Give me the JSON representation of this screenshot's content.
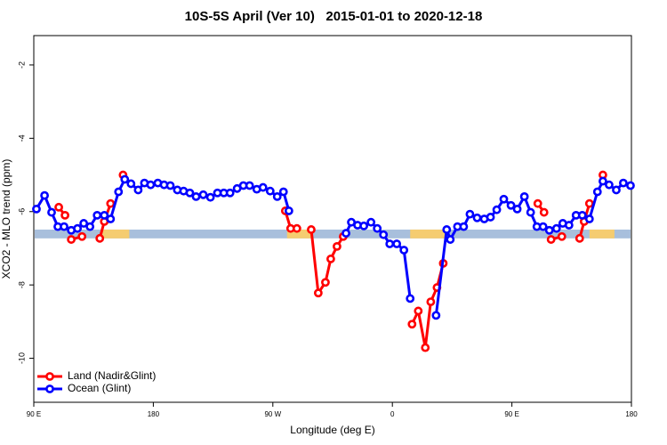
{
  "chart_data": {
    "type": "line",
    "title": "10S-5S April (Ver 10)   2015-01-01 to 2020-12-18",
    "xlabel": "Longitude (deg E)",
    "ylabel": "XCO2 - MLO trend (ppm)",
    "xlim": [
      90,
      540
    ],
    "xticks": [
      {
        "value": 90,
        "label": "90 E"
      },
      {
        "value": 180,
        "label": "180"
      },
      {
        "value": 270,
        "label": "90 W"
      },
      {
        "value": 360,
        "label": "0"
      },
      {
        "value": 450,
        "label": "90 E"
      },
      {
        "value": 540,
        "label": "180"
      }
    ],
    "ylim": [
      -11.2,
      -1.2
    ],
    "yticks": [
      -2,
      -4,
      -6,
      -8,
      -10
    ],
    "legend": "bottom-left",
    "band": {
      "y": [
        -6.73,
        -6.49
      ],
      "color": "#a8bfdc",
      "land_color": "#f5cc70",
      "land_x": [
        [
          141.7,
          161.9
        ],
        [
          280.7,
          299.5
        ],
        [
          373.4,
          400.2
        ],
        [
          508.4,
          527.2
        ]
      ]
    },
    "series": [
      {
        "name": "Land (Nadir&Glint)",
        "color": "#ff0000",
        "x": [
          108.8,
          113.5,
          null,
          118.2,
          126.3,
          null,
          139.7,
          143.1,
          147.8,
          null,
          157.2,
          null,
          279.4,
          283.4,
          288.1,
          null,
          298.9,
          304.2,
          309.6,
          313.6,
          318.3,
          323.0,
          null,
          374.8,
          379.5,
          384.8,
          388.9,
          393.6,
          398.3,
          null,
          469.5,
          474.2,
          null,
          479.5,
          487.6,
          null,
          501.0,
          504.4,
          508.4,
          null,
          518.5
        ],
        "values": [
          -5.88,
          -6.1,
          null,
          -6.76,
          -6.68,
          null,
          -6.73,
          -6.27,
          -5.78,
          null,
          -5.0,
          null,
          -5.98,
          -6.46,
          -6.46,
          null,
          -6.49,
          -8.22,
          -7.93,
          -7.29,
          -6.95,
          -6.68,
          null,
          -9.07,
          -8.71,
          -9.71,
          -8.46,
          -8.07,
          -7.41,
          null,
          -5.78,
          -6.02,
          null,
          -6.76,
          -6.68,
          null,
          -6.73,
          -6.27,
          -5.78,
          null,
          -5.0
        ]
      },
      {
        "name": "Ocean (Glint)",
        "color": "#0000ff",
        "x": [
          92.0,
          98.1,
          103.4,
          108.1,
          112.8,
          118.2,
          122.9,
          127.6,
          132.3,
          137.7,
          143.1,
          147.8,
          153.8,
          158.5,
          163.2,
          168.6,
          173.3,
          178.0,
          183.4,
          188.1,
          192.8,
          198.1,
          202.8,
          207.5,
          212.2,
          217.6,
          223.0,
          228.3,
          233.1,
          237.8,
          243.1,
          247.8,
          252.5,
          257.9,
          262.6,
          268.0,
          273.3,
          278.0,
          282.1,
          null,
          325.1,
          329.1,
          333.8,
          338.5,
          343.9,
          348.6,
          353.3,
          358.0,
          363.3,
          368.7,
          373.4,
          null,
          392.9,
          400.9,
          403.6,
          409.0,
          413.7,
          418.4,
          423.8,
          429.2,
          433.9,
          438.6,
          443.9,
          449.3,
          454.0,
          459.4,
          464.1,
          468.8,
          473.5,
          478.2,
          483.6,
          488.3,
          493.0,
          498.3,
          503.0,
          508.4,
          514.4,
          518.5,
          523.2,
          528.6,
          533.9,
          539.3
        ],
        "values": [
          -5.93,
          -5.56,
          -6.02,
          -6.41,
          -6.41,
          -6.51,
          -6.46,
          -6.32,
          -6.41,
          -6.1,
          -6.1,
          -6.2,
          -5.46,
          -5.12,
          -5.24,
          -5.41,
          -5.22,
          -5.27,
          -5.22,
          -5.27,
          -5.29,
          -5.41,
          -5.44,
          -5.49,
          -5.59,
          -5.54,
          -5.61,
          -5.49,
          -5.49,
          -5.49,
          -5.37,
          -5.29,
          -5.29,
          -5.39,
          -5.34,
          -5.44,
          -5.59,
          -5.46,
          -5.98,
          null,
          -6.59,
          -6.29,
          -6.37,
          -6.39,
          -6.29,
          -6.46,
          -6.63,
          -6.88,
          -6.88,
          -7.05,
          -8.37,
          null,
          -8.83,
          -6.49,
          -6.76,
          -6.41,
          -6.41,
          -6.07,
          -6.17,
          -6.2,
          -6.15,
          -5.95,
          -5.66,
          -5.83,
          -5.93,
          -5.59,
          -6.02,
          -6.41,
          -6.41,
          -6.51,
          -6.46,
          -6.32,
          -6.37,
          -6.1,
          -6.1,
          -6.2,
          -5.46,
          -5.17,
          -5.27,
          -5.41,
          -5.22,
          -5.29
        ]
      }
    ]
  }
}
